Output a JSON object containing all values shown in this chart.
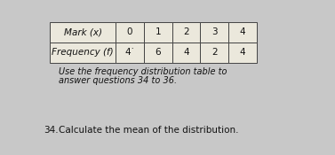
{
  "row1_label": "Mark (x)",
  "row2_label": "Frequency (f)",
  "mark_values": [
    "0",
    "1",
    "2",
    "3",
    "4"
  ],
  "freq_values": [
    "4˙",
    "6",
    "4",
    "2",
    "4"
  ],
  "instruction_line1": "Use the frequency distribution table to",
  "instruction_line2": "answer questions 34 to 36.",
  "question_number": "34.",
  "question_text": "Calculate the mean of the distribution.",
  "bg_color": "#c8c8c8",
  "table_bg": "#ebe8dc",
  "text_color": "#111111",
  "font_size_table": 7.5,
  "font_size_instruction": 7.0,
  "font_size_question": 7.5
}
